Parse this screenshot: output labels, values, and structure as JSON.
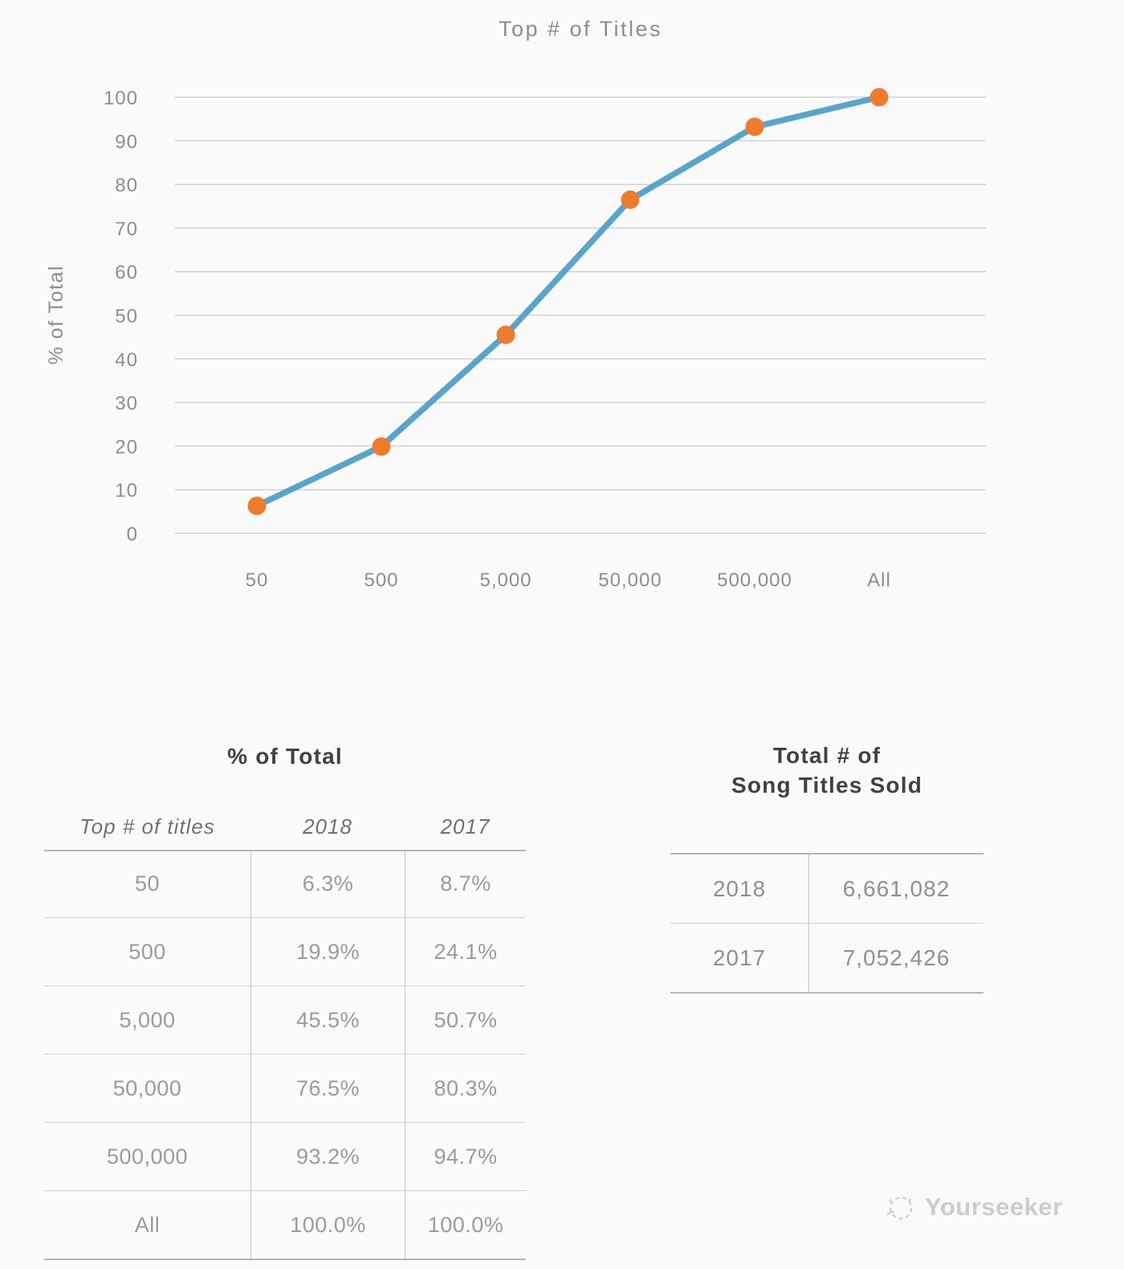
{
  "background": "#fafafa",
  "chart_data": {
    "type": "line",
    "title": "Top # of Titles",
    "ylabel": "% of Total",
    "categories": [
      "50",
      "500",
      "5,000",
      "50,000",
      "500,000",
      "All"
    ],
    "series": [
      {
        "name": "2018",
        "values": [
          6.3,
          19.9,
          45.5,
          76.5,
          93.2,
          100.0
        ]
      }
    ],
    "ylim": [
      0,
      100
    ],
    "ytick_step": 10,
    "grid": true,
    "legend_position": "none",
    "line_color": "#5aa4c9",
    "marker_color": "#ee7c2f"
  },
  "percent_table": {
    "title": "% of Total",
    "columns": [
      "Top # of titles",
      "2018",
      "2017"
    ],
    "rows": [
      [
        "50",
        "6.3%",
        "8.7%"
      ],
      [
        "500",
        "19.9%",
        "24.1%"
      ],
      [
        "5,000",
        "45.5%",
        "50.7%"
      ],
      [
        "50,000",
        "76.5%",
        "80.3%"
      ],
      [
        "500,000",
        "93.2%",
        "94.7%"
      ],
      [
        "All",
        "100.0%",
        "100.0%"
      ]
    ]
  },
  "totals_table": {
    "title_line1": "Total # of",
    "title_line2": "Song Titles Sold",
    "rows": [
      [
        "2018",
        "6,661,082"
      ],
      [
        "2017",
        "7,052,426"
      ]
    ]
  },
  "watermark": {
    "label": "Yourseeker"
  }
}
